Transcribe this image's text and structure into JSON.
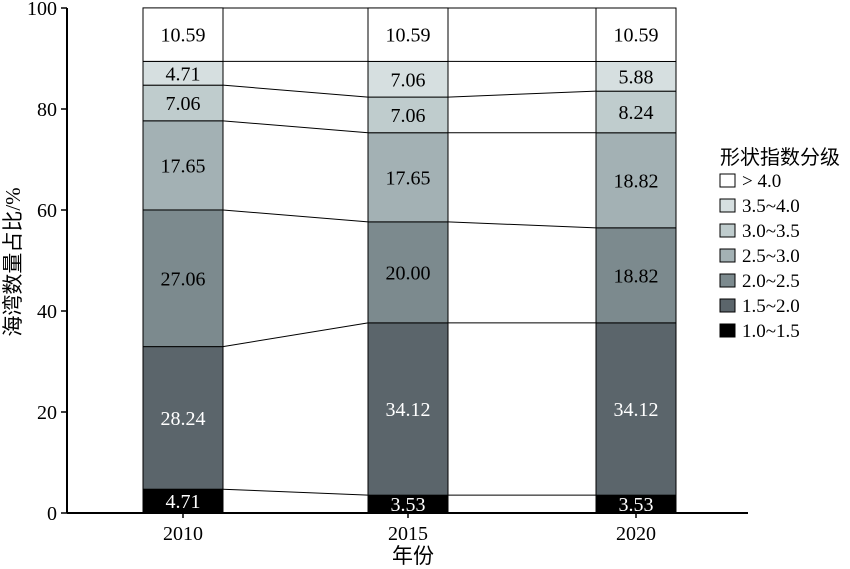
{
  "chart_data": {
    "type": "bar",
    "stacked": true,
    "categories": [
      "2010",
      "2015",
      "2020"
    ],
    "xlabel": "年份",
    "ylabel": "海湾数量占比/%",
    "ylim": [
      0,
      100
    ],
    "yticks": [
      0,
      20,
      40,
      60,
      80,
      100
    ],
    "legend_title": "形状指数分级",
    "legend_position": "right",
    "series": [
      {
        "name": "1.0~1.5",
        "values": [
          4.71,
          3.53,
          3.53
        ],
        "color": "#000000",
        "label_color": "#ffffff"
      },
      {
        "name": "1.5~2.0",
        "values": [
          28.24,
          34.12,
          34.12
        ],
        "color": "#5b656b",
        "label_color": "#ffffff"
      },
      {
        "name": "2.0~2.5",
        "values": [
          27.06,
          20.0,
          18.82
        ],
        "color": "#7c8a8e",
        "label_color": "#000000"
      },
      {
        "name": "2.5~3.0",
        "values": [
          17.65,
          17.65,
          18.82
        ],
        "color": "#a3b1b4",
        "label_color": "#000000"
      },
      {
        "name": "3.0~3.5",
        "values": [
          7.06,
          7.06,
          8.24
        ],
        "color": "#bfcccd",
        "label_color": "#000000"
      },
      {
        "name": "3.5~4.0",
        "values": [
          4.71,
          7.06,
          5.88
        ],
        "color": "#d6dfe0",
        "label_color": "#000000"
      },
      {
        "name": "> 4.0",
        "values": [
          10.59,
          10.59,
          10.59
        ],
        "color": "#ffffff",
        "label_color": "#000000"
      }
    ],
    "value_labels": [
      [
        "4.71",
        "3.53",
        "3.53"
      ],
      [
        "28.24",
        "34.12",
        "34.12"
      ],
      [
        "27.06",
        "20.00",
        "18.82"
      ],
      [
        "17.65",
        "17.65",
        "18.82"
      ],
      [
        "7.06",
        "7.06",
        "8.24"
      ],
      [
        "4.71",
        "7.06",
        "5.88"
      ],
      [
        "10.59",
        "10.59",
        "10.59"
      ]
    ],
    "connector_lines": true,
    "grid": false
  }
}
